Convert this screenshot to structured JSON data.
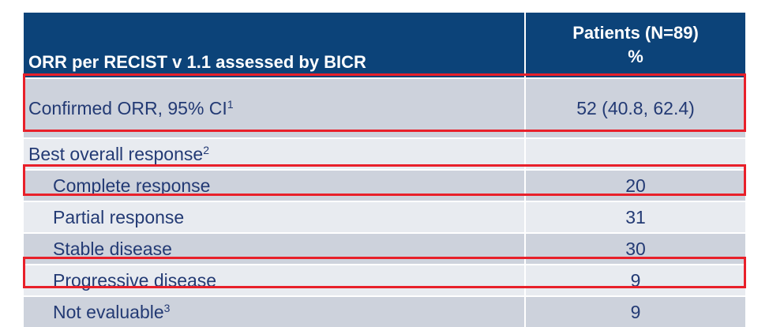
{
  "header": {
    "col1": "ORR per RECIST v 1.1 assessed by BICR",
    "col2_line1": "Patients (N=89)",
    "col2_line2": "%"
  },
  "rows": [
    {
      "label": "Confirmed ORR, 95% CI",
      "sup": "1",
      "value": "52 (40.8, 62.4)",
      "highlighted": true
    },
    {
      "label": "Best overall response",
      "sup": "2",
      "value": "",
      "highlighted": false
    },
    {
      "label": "Complete response",
      "sup": "",
      "value": "20",
      "highlighted": true
    },
    {
      "label": "Partial response",
      "sup": "",
      "value": "31",
      "highlighted": false
    },
    {
      "label": "Stable disease",
      "sup": "",
      "value": "30",
      "highlighted": false
    },
    {
      "label": "Progressive disease",
      "sup": "",
      "value": "9",
      "highlighted": true
    },
    {
      "label": "Not evaluable",
      "sup": "3",
      "value": "9",
      "highlighted": false
    }
  ],
  "colors": {
    "header_bg": "#0c4379",
    "text": "#233a74",
    "row_dark": "#cdd2dc",
    "row_light": "#e8ebf0",
    "highlight": "#e8202a"
  }
}
